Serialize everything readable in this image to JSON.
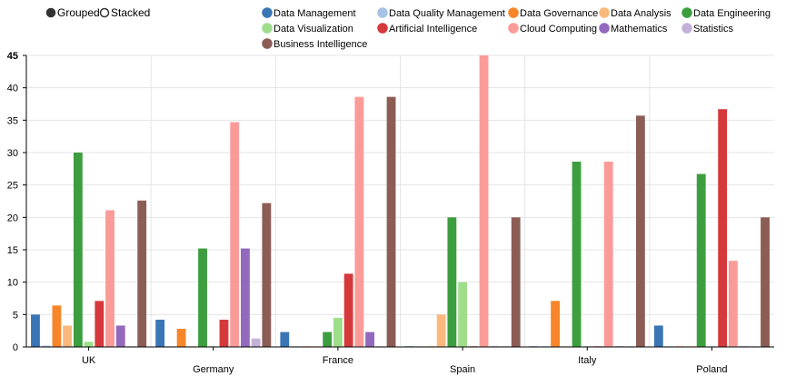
{
  "controls": [
    {
      "label": "Grouped",
      "selected": true
    },
    {
      "label": "Stacked",
      "selected": false
    }
  ],
  "chart_data": {
    "type": "bar",
    "mode": "grouped",
    "categories": [
      "UK",
      "Germany",
      "France",
      "Spain",
      "Italy",
      "Poland"
    ],
    "ylim": [
      0,
      45
    ],
    "yticks": [
      0,
      5,
      10,
      15,
      20,
      25,
      30,
      35,
      40,
      45
    ],
    "grid": true,
    "legend_position": "top",
    "series": [
      {
        "name": "Data Management",
        "color": "#3a76b6",
        "values": [
          5.0,
          4.2,
          2.3,
          0.1,
          0.1,
          3.3
        ]
      },
      {
        "name": "Data Quality Management",
        "color": "#a6c3e6",
        "values": [
          0.2,
          0.1,
          0.1,
          0.1,
          0.1,
          0.1
        ]
      },
      {
        "name": "Data Governance",
        "color": "#f7862a",
        "values": [
          6.4,
          2.8,
          0.1,
          0.1,
          7.1,
          0.1
        ]
      },
      {
        "name": "Data Analysis",
        "color": "#f9b97c",
        "values": [
          3.3,
          0.1,
          0.1,
          5.0,
          0.1,
          0.1
        ]
      },
      {
        "name": "Data Engineering",
        "color": "#3d9e40",
        "values": [
          30.0,
          15.2,
          2.3,
          20.0,
          28.6,
          26.7
        ]
      },
      {
        "name": "Data Visualization",
        "color": "#9ede8b",
        "values": [
          0.8,
          0.1,
          4.5,
          10.0,
          0.1,
          0.1
        ]
      },
      {
        "name": "Artificial Intelligence",
        "color": "#d6393c",
        "values": [
          7.1,
          4.2,
          11.3,
          0.1,
          0.1,
          36.7
        ]
      },
      {
        "name": "Cloud Computing",
        "color": "#fb9b98",
        "values": [
          21.1,
          34.7,
          38.6,
          45.0,
          28.6,
          13.3
        ]
      },
      {
        "name": "Mathematics",
        "color": "#9369bd",
        "values": [
          3.3,
          15.2,
          2.3,
          0.1,
          0.1,
          0.1
        ]
      },
      {
        "name": "Statistics",
        "color": "#c3b0d7",
        "values": [
          0.1,
          1.3,
          0.1,
          0.1,
          0.1,
          0.1
        ]
      },
      {
        "name": "Business Intelligence",
        "color": "#8c5d55",
        "values": [
          22.6,
          22.2,
          38.6,
          20.0,
          35.7,
          20.0
        ]
      }
    ]
  }
}
